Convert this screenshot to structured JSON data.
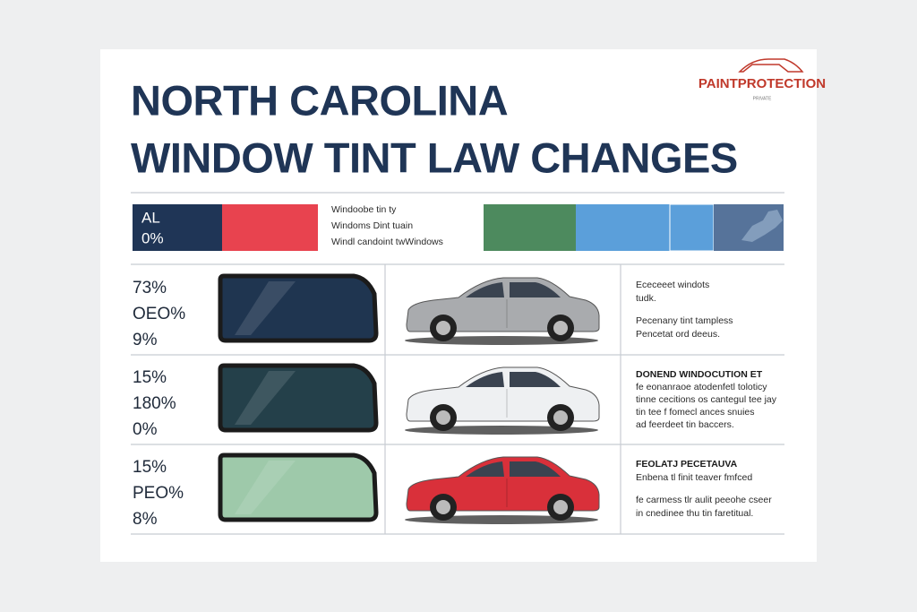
{
  "header": {
    "title": [
      "NORTH CAROLINA",
      "WINDOW TINT LAW CHANGES"
    ],
    "logo": "PAINTPROTECTION",
    "logo_sub": "PRIVATE"
  },
  "summary": {
    "block_label": [
      "AL",
      "0%"
    ],
    "lines": [
      "Windoobe tin ty",
      "Windoms Dint tuain",
      "Windl candoint twWindows"
    ]
  },
  "rows": [
    {
      "percentages": [
        "73%",
        "OEO%",
        "9%"
      ],
      "lines": [
        "Ececeeet windots",
        "tudk.",
        "Pecenany tint tampless",
        "Pencetat ord deeus."
      ]
    },
    {
      "percentages": [
        "15%",
        "180%",
        "0%"
      ],
      "lines": [
        "DONEND WINDOCUTION ET",
        "fe eonanraoe atodenfetl toloticy",
        "tinne cecitions os cantegul tee jay",
        "tin tee f fomecl ances snuies",
        "ad feerdeet tin baccers."
      ]
    },
    {
      "percentages": [
        "15%",
        "PEO%",
        "8%"
      ],
      "lines": [
        "FEOLATJ PECETAUVA",
        "Enbena tl finit teaver fmfced",
        "fe carmess tlr aulit peeohe cseer",
        "in cnedinee thu tin faretitual."
      ]
    }
  ]
}
